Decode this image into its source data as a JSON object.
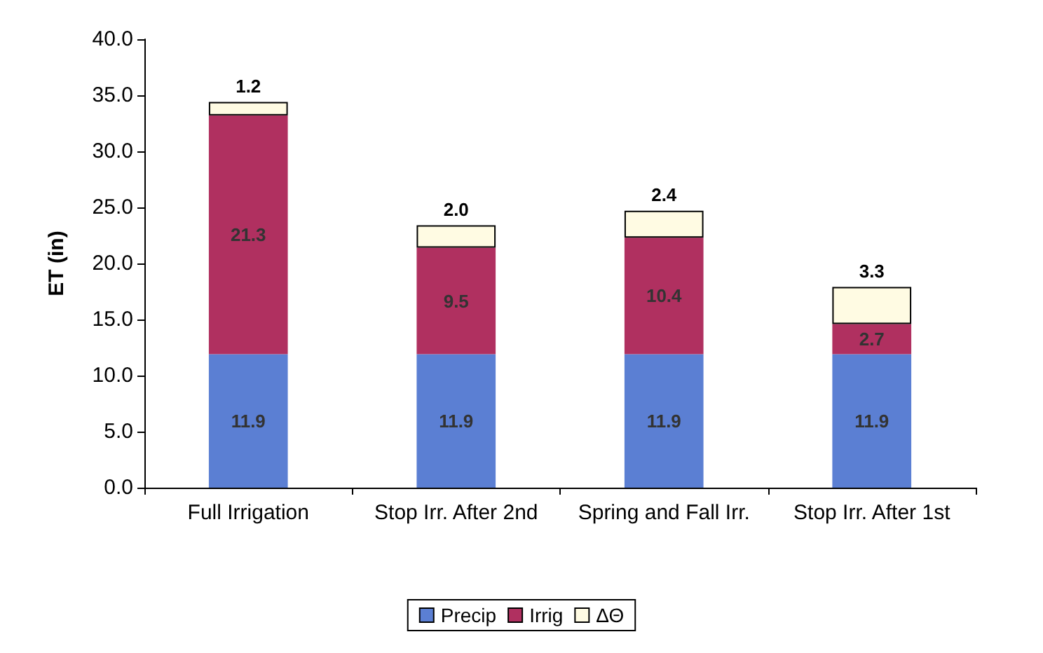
{
  "chart_data": {
    "type": "bar",
    "stacked": true,
    "ylabel": "ET (in)",
    "categories": [
      "Full Irrigation",
      "Stop Irr. After 2nd",
      "Spring and Fall Irr.",
      "Stop Irr. After 1st"
    ],
    "series": [
      {
        "name": "Precip",
        "color": "#5b7fd3",
        "values": [
          11.9,
          11.9,
          11.9,
          11.9
        ],
        "value_labels": [
          "11.9",
          "11.9",
          "11.9",
          "11.9"
        ]
      },
      {
        "name": "Irrig",
        "color": "#b03060",
        "values": [
          21.3,
          9.5,
          10.4,
          2.7
        ],
        "value_labels": [
          "21.3",
          "9.5",
          "10.4",
          "2.7"
        ]
      },
      {
        "name": "ΔΘ",
        "color": "#fffbe3",
        "values": [
          1.2,
          2.0,
          2.4,
          3.3
        ],
        "value_labels": [
          "1.2",
          "2.0",
          "2.4",
          "3.3"
        ]
      }
    ],
    "ylim": [
      0,
      40
    ],
    "yticks": [
      {
        "value": 0,
        "label": "0.0"
      },
      {
        "value": 5,
        "label": "5.0"
      },
      {
        "value": 10,
        "label": "10.0"
      },
      {
        "value": 15,
        "label": "15.0"
      },
      {
        "value": 20,
        "label": "20.0"
      },
      {
        "value": 25,
        "label": "25.0"
      },
      {
        "value": 30,
        "label": "30.0"
      },
      {
        "value": 35,
        "label": "35.0"
      },
      {
        "value": 40,
        "label": "40.0"
      }
    ],
    "grid": false,
    "legend": "bottom"
  }
}
